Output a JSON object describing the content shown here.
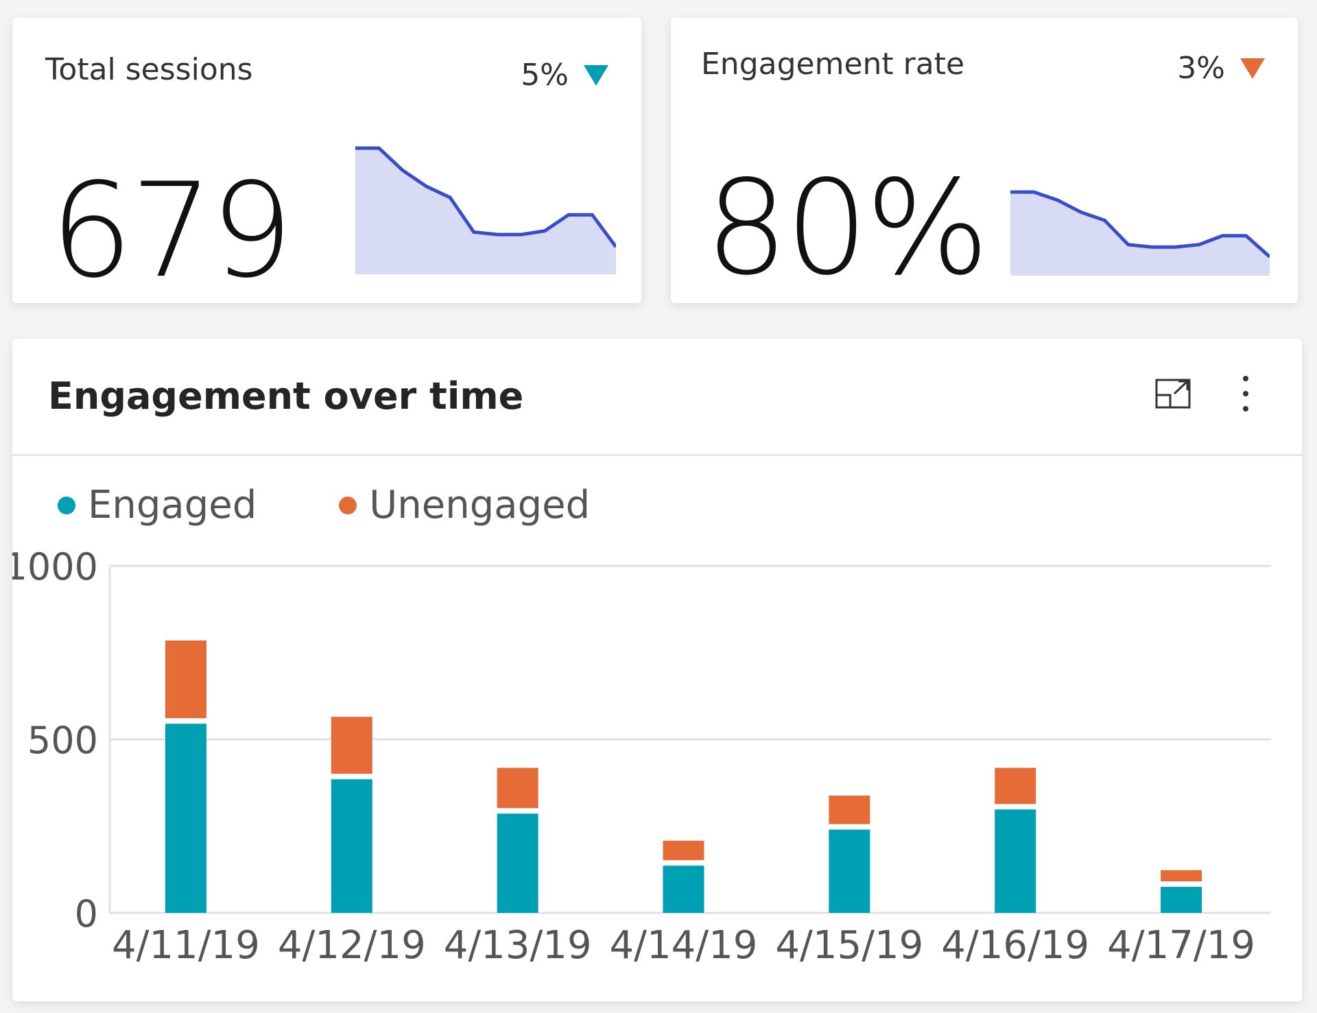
{
  "colors": {
    "engaged": "#00a0b4",
    "unengaged": "#e66c37",
    "sparkline": "#3b4cc8",
    "sparkline_fill": "#d7dbf4",
    "delta_down_good": "#00a0b4",
    "delta_down_bad": "#e66c37"
  },
  "kpis": [
    {
      "title": "Total sessions",
      "value": "679",
      "delta": "5%",
      "delta_icon": "triangle-down-icon",
      "delta_color": "#00a0b4",
      "sparkline": [
        10,
        10,
        8.2,
        6.9,
        6,
        3.2,
        3,
        3,
        3.3,
        4.6,
        4.6,
        2
      ]
    },
    {
      "title": "Engagement rate",
      "value": "80%",
      "delta": "3%",
      "delta_icon": "triangle-down-icon",
      "delta_color": "#e66c37",
      "sparkline": [
        10,
        10,
        9,
        7.5,
        6.5,
        3.5,
        3.2,
        3.2,
        3.5,
        4.6,
        4.6,
        2
      ]
    }
  ],
  "chart_card": {
    "title": "Engagement over time",
    "focus_icon": "focus-mode-icon",
    "more_icon": "more-options-icon"
  },
  "chart_data": {
    "type": "bar",
    "stacked": true,
    "categories": [
      "4/11/19",
      "4/12/19",
      "4/13/19",
      "4/14/19",
      "4/15/19",
      "4/16/19",
      "4/17/19"
    ],
    "series": [
      {
        "name": "Engaged",
        "color": "#00a0b4",
        "values": [
          545,
          385,
          286,
          136,
          240,
          298,
          75
        ]
      },
      {
        "name": "Unengaged",
        "color": "#e66c37",
        "values": [
          240,
          180,
          132,
          72,
          98,
          120,
          48
        ]
      }
    ],
    "yticks": [
      "0",
      "500",
      "1000"
    ],
    "ylim": [
      0,
      1000
    ],
    "grid": true,
    "legend": "top-left"
  }
}
